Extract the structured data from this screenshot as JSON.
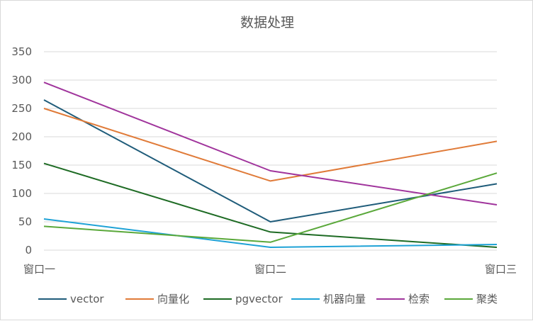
{
  "chart_data": {
    "type": "line",
    "title": "数据处理",
    "categories": [
      "窗口一",
      "窗口二",
      "窗口三"
    ],
    "ylim": [
      0,
      350
    ],
    "yticks": [
      0,
      50,
      100,
      150,
      200,
      250,
      300,
      350
    ],
    "grid": true,
    "legend": "bottom",
    "series": [
      {
        "name": "vector",
        "color": "#1f5c7a",
        "values": [
          265,
          50,
          117
        ]
      },
      {
        "name": "向量化",
        "color": "#e07b39",
        "values": [
          250,
          122,
          192
        ]
      },
      {
        "name": "pgvector",
        "color": "#1e6b24",
        "values": [
          153,
          32,
          5
        ]
      },
      {
        "name": "机器向量",
        "color": "#1ea2d6",
        "values": [
          55,
          5,
          10
        ]
      },
      {
        "name": "检索",
        "color": "#a0349c",
        "values": [
          296,
          140,
          80
        ]
      },
      {
        "name": "聚类",
        "color": "#5aa83a",
        "values": [
          42,
          14,
          136
        ]
      }
    ]
  }
}
